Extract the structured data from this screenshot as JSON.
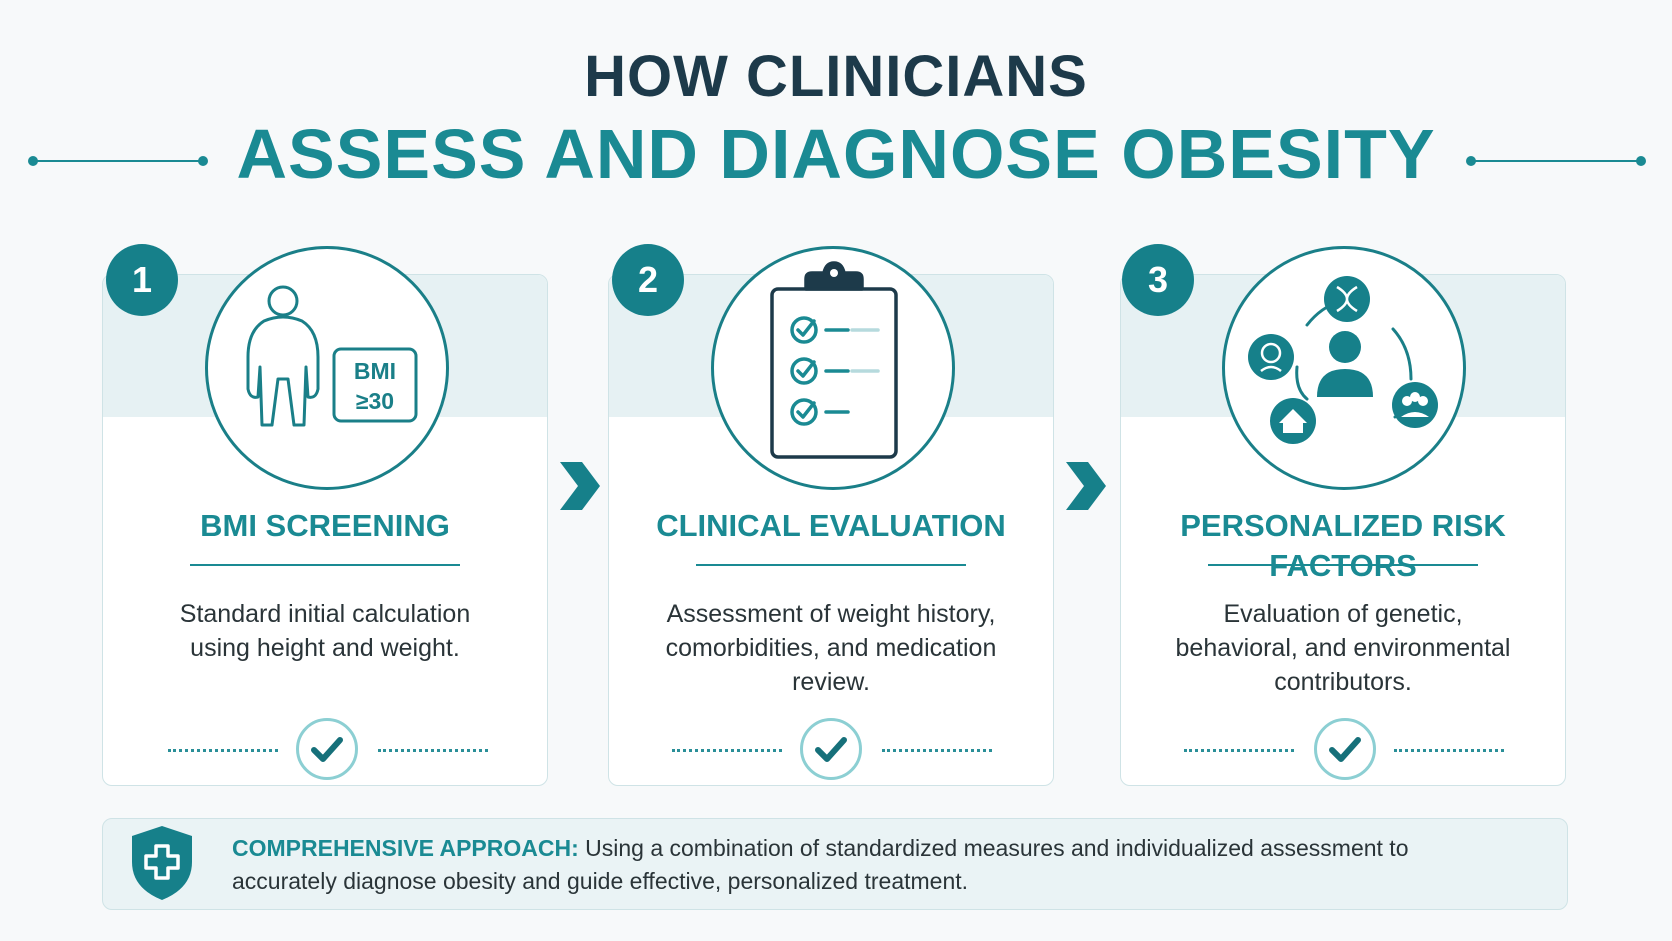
{
  "header": {
    "title_line1": "HOW CLINICIANS",
    "title_line2": "ASSESS AND DIAGNOSE OBESITY"
  },
  "steps": [
    {
      "number": "1",
      "title": "BMI SCREENING",
      "description": "Standard initial calculation using height and weight.",
      "icon": "person-bmi-icon",
      "badge_line1": "BMI",
      "badge_line2": "≥30"
    },
    {
      "number": "2",
      "title": "CLINICAL EVALUATION",
      "description": "Assessment of weight history, comorbidities, and medication review.",
      "icon": "clipboard-checklist-icon"
    },
    {
      "number": "3",
      "title": "PERSONALIZED RISK FACTORS",
      "description": "Evaluation of genetic, behavioral, and environmental contributors.",
      "icon": "risk-factors-network-icon"
    }
  ],
  "footer": {
    "label": "COMPREHENSIVE APPROACH:",
    "text": " Using a combination of standardized measures and individualized assessment to accurately diagnose obesity and guide effective, personalized treatment.",
    "icon": "medical-shield-icon"
  },
  "colors": {
    "accent": "#1a8a93",
    "dark": "#1d3a4a",
    "badge": "#16808a",
    "band": "#e6f1f3"
  }
}
